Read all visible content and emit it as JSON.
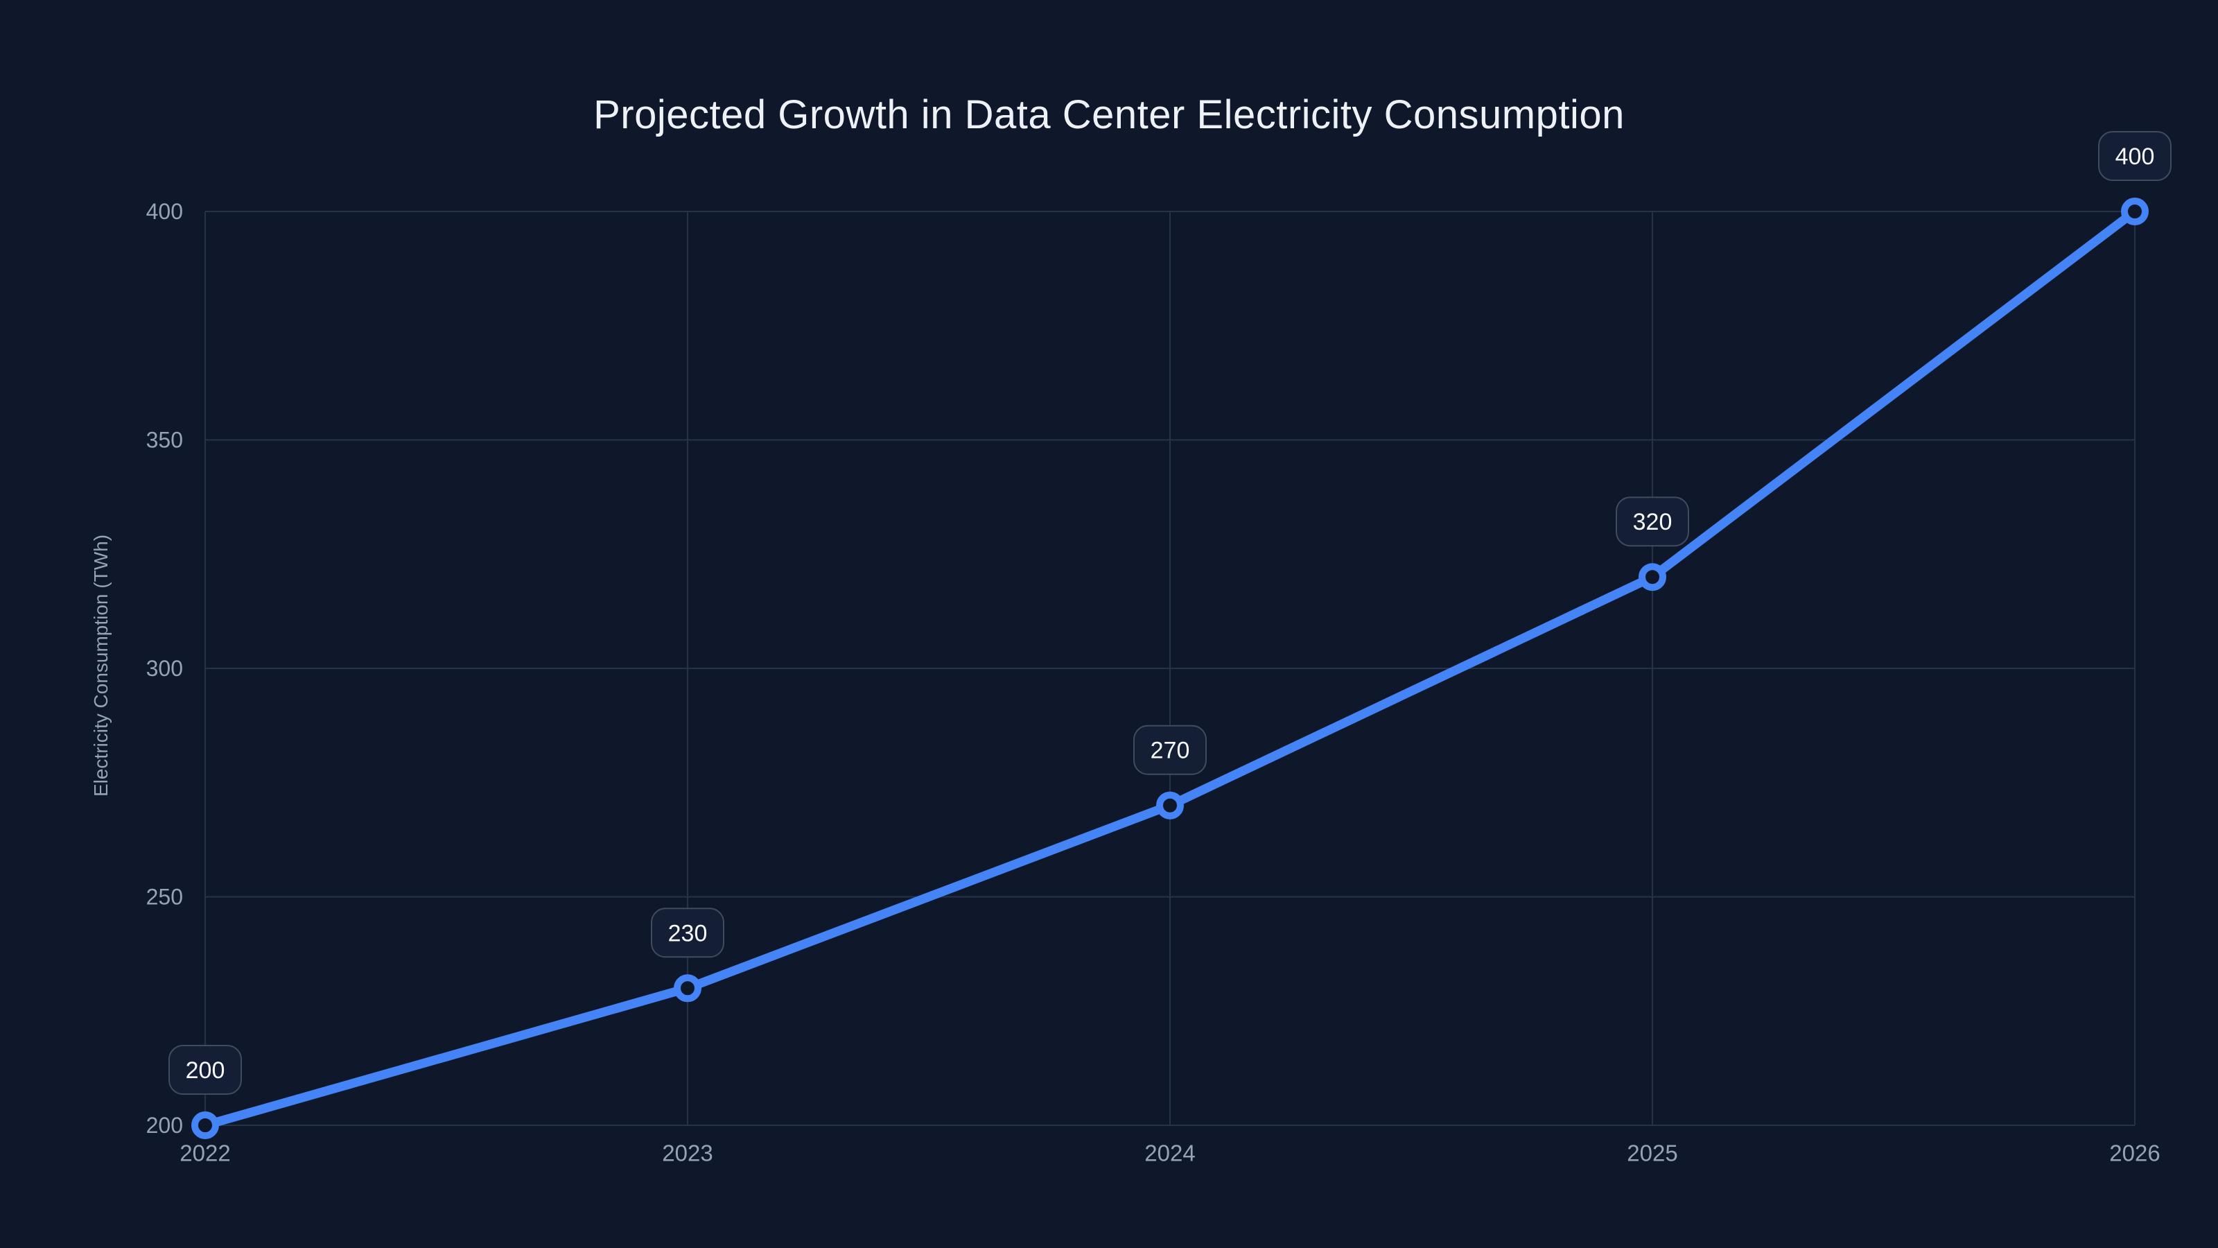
{
  "chart_data": {
    "type": "line",
    "title": "Projected Growth in Data Center Electricity Consumption",
    "xlabel": "",
    "ylabel": "Electricity Consumption (TWh)",
    "categories": [
      "2022",
      "2023",
      "2024",
      "2025",
      "2026"
    ],
    "values": [
      200,
      230,
      270,
      320,
      400
    ],
    "data_labels": [
      "200",
      "230",
      "270",
      "320",
      "400"
    ],
    "y_ticks": [
      200,
      250,
      300,
      350,
      400
    ],
    "ylim": [
      200,
      400
    ],
    "grid": true,
    "legend": false,
    "colors": {
      "background": "#0f172a",
      "line": "#4584f6",
      "marker_fill": "#0f172a",
      "grid": "#27334a",
      "tick_text": "#94a3b8",
      "title_text": "#eef2f7",
      "label_box_bg": "#141f36",
      "label_box_border": "#404b61",
      "label_text": "#f6f8fb"
    }
  }
}
